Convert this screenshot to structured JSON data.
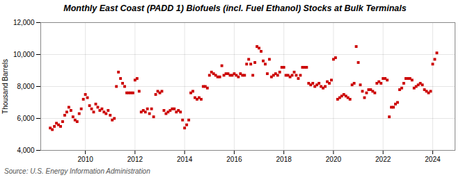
{
  "chart_data": {
    "type": "scatter",
    "title": "Monthly East Coast (PADD 1) Biofuels (incl. Fuel Ethanol) Stocks at Bulk Terminals",
    "ylabel": "Thousand Barrels",
    "annotations": [
      "Source: U.S. Energy Information Administration"
    ],
    "color": "#cc0000",
    "marker": "square",
    "grid": true,
    "xlim": [
      2008.2,
      2024.9
    ],
    "xticks": [
      2010,
      2012,
      2014,
      2016,
      2018,
      2020,
      2022,
      2024
    ],
    "ylim": [
      4000,
      12000
    ],
    "yticks": [
      {
        "value": 4000,
        "label": "4,000"
      },
      {
        "value": 6000,
        "label": "6,000"
      },
      {
        "value": 8000,
        "label": "8,000"
      },
      {
        "value": 10000,
        "label": "10,000"
      },
      {
        "value": 12000,
        "label": "12,000"
      }
    ],
    "x": [
      2008.583,
      2008.667,
      2008.75,
      2008.833,
      2008.917,
      2009.0,
      2009.083,
      2009.167,
      2009.25,
      2009.333,
      2009.417,
      2009.5,
      2009.583,
      2009.667,
      2009.75,
      2009.833,
      2009.917,
      2010.0,
      2010.083,
      2010.167,
      2010.25,
      2010.333,
      2010.417,
      2010.5,
      2010.583,
      2010.667,
      2010.75,
      2010.833,
      2010.917,
      2011.0,
      2011.083,
      2011.167,
      2011.25,
      2011.333,
      2011.417,
      2011.5,
      2011.583,
      2011.667,
      2011.75,
      2011.833,
      2011.917,
      2012.0,
      2012.083,
      2012.167,
      2012.25,
      2012.333,
      2012.417,
      2012.5,
      2012.583,
      2012.667,
      2012.75,
      2012.833,
      2012.917,
      2013.0,
      2013.083,
      2013.167,
      2013.25,
      2013.333,
      2013.417,
      2013.5,
      2013.583,
      2013.667,
      2013.75,
      2013.833,
      2013.917,
      2014.0,
      2014.083,
      2014.167,
      2014.25,
      2014.333,
      2014.417,
      2014.5,
      2014.583,
      2014.667,
      2014.75,
      2014.833,
      2014.917,
      2015.0,
      2015.083,
      2015.167,
      2015.25,
      2015.333,
      2015.417,
      2015.5,
      2015.583,
      2015.667,
      2015.75,
      2015.833,
      2015.917,
      2016.0,
      2016.083,
      2016.167,
      2016.25,
      2016.333,
      2016.417,
      2016.5,
      2016.583,
      2016.667,
      2016.75,
      2016.833,
      2016.917,
      2017.0,
      2017.083,
      2017.167,
      2017.25,
      2017.333,
      2017.417,
      2017.5,
      2017.583,
      2017.667,
      2017.75,
      2017.833,
      2017.917,
      2018.0,
      2018.083,
      2018.167,
      2018.25,
      2018.333,
      2018.417,
      2018.5,
      2018.583,
      2018.667,
      2018.75,
      2018.833,
      2018.917,
      2019.0,
      2019.083,
      2019.167,
      2019.25,
      2019.333,
      2019.417,
      2019.5,
      2019.583,
      2019.667,
      2019.75,
      2019.833,
      2019.917,
      2020.0,
      2020.083,
      2020.167,
      2020.25,
      2020.333,
      2020.417,
      2020.5,
      2020.583,
      2020.667,
      2020.75,
      2020.833,
      2020.917,
      2021.0,
      2021.083,
      2021.167,
      2021.25,
      2021.333,
      2021.417,
      2021.5,
      2021.583,
      2021.667,
      2021.75,
      2021.833,
      2021.917,
      2022.0,
      2022.083,
      2022.167,
      2022.25,
      2022.333,
      2022.417,
      2022.5,
      2022.583,
      2022.667,
      2022.75,
      2022.833,
      2022.917,
      2023.0,
      2023.083,
      2023.167,
      2023.25,
      2023.333,
      2023.417,
      2023.5,
      2023.583,
      2023.667,
      2023.75,
      2023.833,
      2023.917,
      2024.0,
      2024.083,
      2024.167
    ],
    "values": [
      5400,
      5300,
      5500,
      5700,
      5600,
      5500,
      5800,
      6200,
      6400,
      6700,
      6500,
      6100,
      5900,
      5800,
      6300,
      6600,
      7200,
      7500,
      7300,
      6800,
      6600,
      6400,
      6900,
      6700,
      6500,
      6600,
      6400,
      6300,
      6500,
      6200,
      5900,
      6000,
      8000,
      8900,
      8500,
      8200,
      8000,
      7600,
      7600,
      7600,
      7600,
      8400,
      8500,
      7700,
      6400,
      6500,
      6400,
      6600,
      6300,
      6600,
      6100,
      7500,
      7700,
      7600,
      7700,
      6500,
      6300,
      6400,
      6500,
      6600,
      6600,
      6400,
      6500,
      6400,
      5900,
      5400,
      5600,
      5900,
      7600,
      7700,
      7300,
      7200,
      7300,
      7200,
      8000,
      8000,
      7900,
      8700,
      8900,
      8800,
      8700,
      8600,
      8600,
      9300,
      8700,
      8800,
      8800,
      8700,
      8700,
      8800,
      8700,
      8600,
      8800,
      8700,
      8700,
      9400,
      9700,
      9400,
      8700,
      9500,
      10500,
      10400,
      10200,
      9600,
      9400,
      8800,
      9700,
      8600,
      8700,
      8800,
      8700,
      8900,
      9200,
      9200,
      8700,
      8700,
      8600,
      8700,
      8900,
      8700,
      8500,
      8700,
      9200,
      9200,
      9200,
      8200,
      8100,
      8200,
      8000,
      8100,
      8200,
      8000,
      7900,
      8000,
      8300,
      8200,
      8400,
      9700,
      9800,
      7200,
      7300,
      7400,
      7500,
      7400,
      7300,
      7200,
      8100,
      8200,
      10500,
      9500,
      8100,
      7700,
      7300,
      7600,
      7800,
      7800,
      7700,
      7600,
      8200,
      8300,
      8200,
      8500,
      8500,
      8400,
      6100,
      6700,
      6700,
      6900,
      7000,
      7800,
      7900,
      8200,
      8500,
      8500,
      8500,
      8400,
      7900,
      8000,
      8100,
      8200,
      8100,
      7800,
      7700,
      7600,
      7700,
      9400,
      9700,
      10100
    ]
  }
}
